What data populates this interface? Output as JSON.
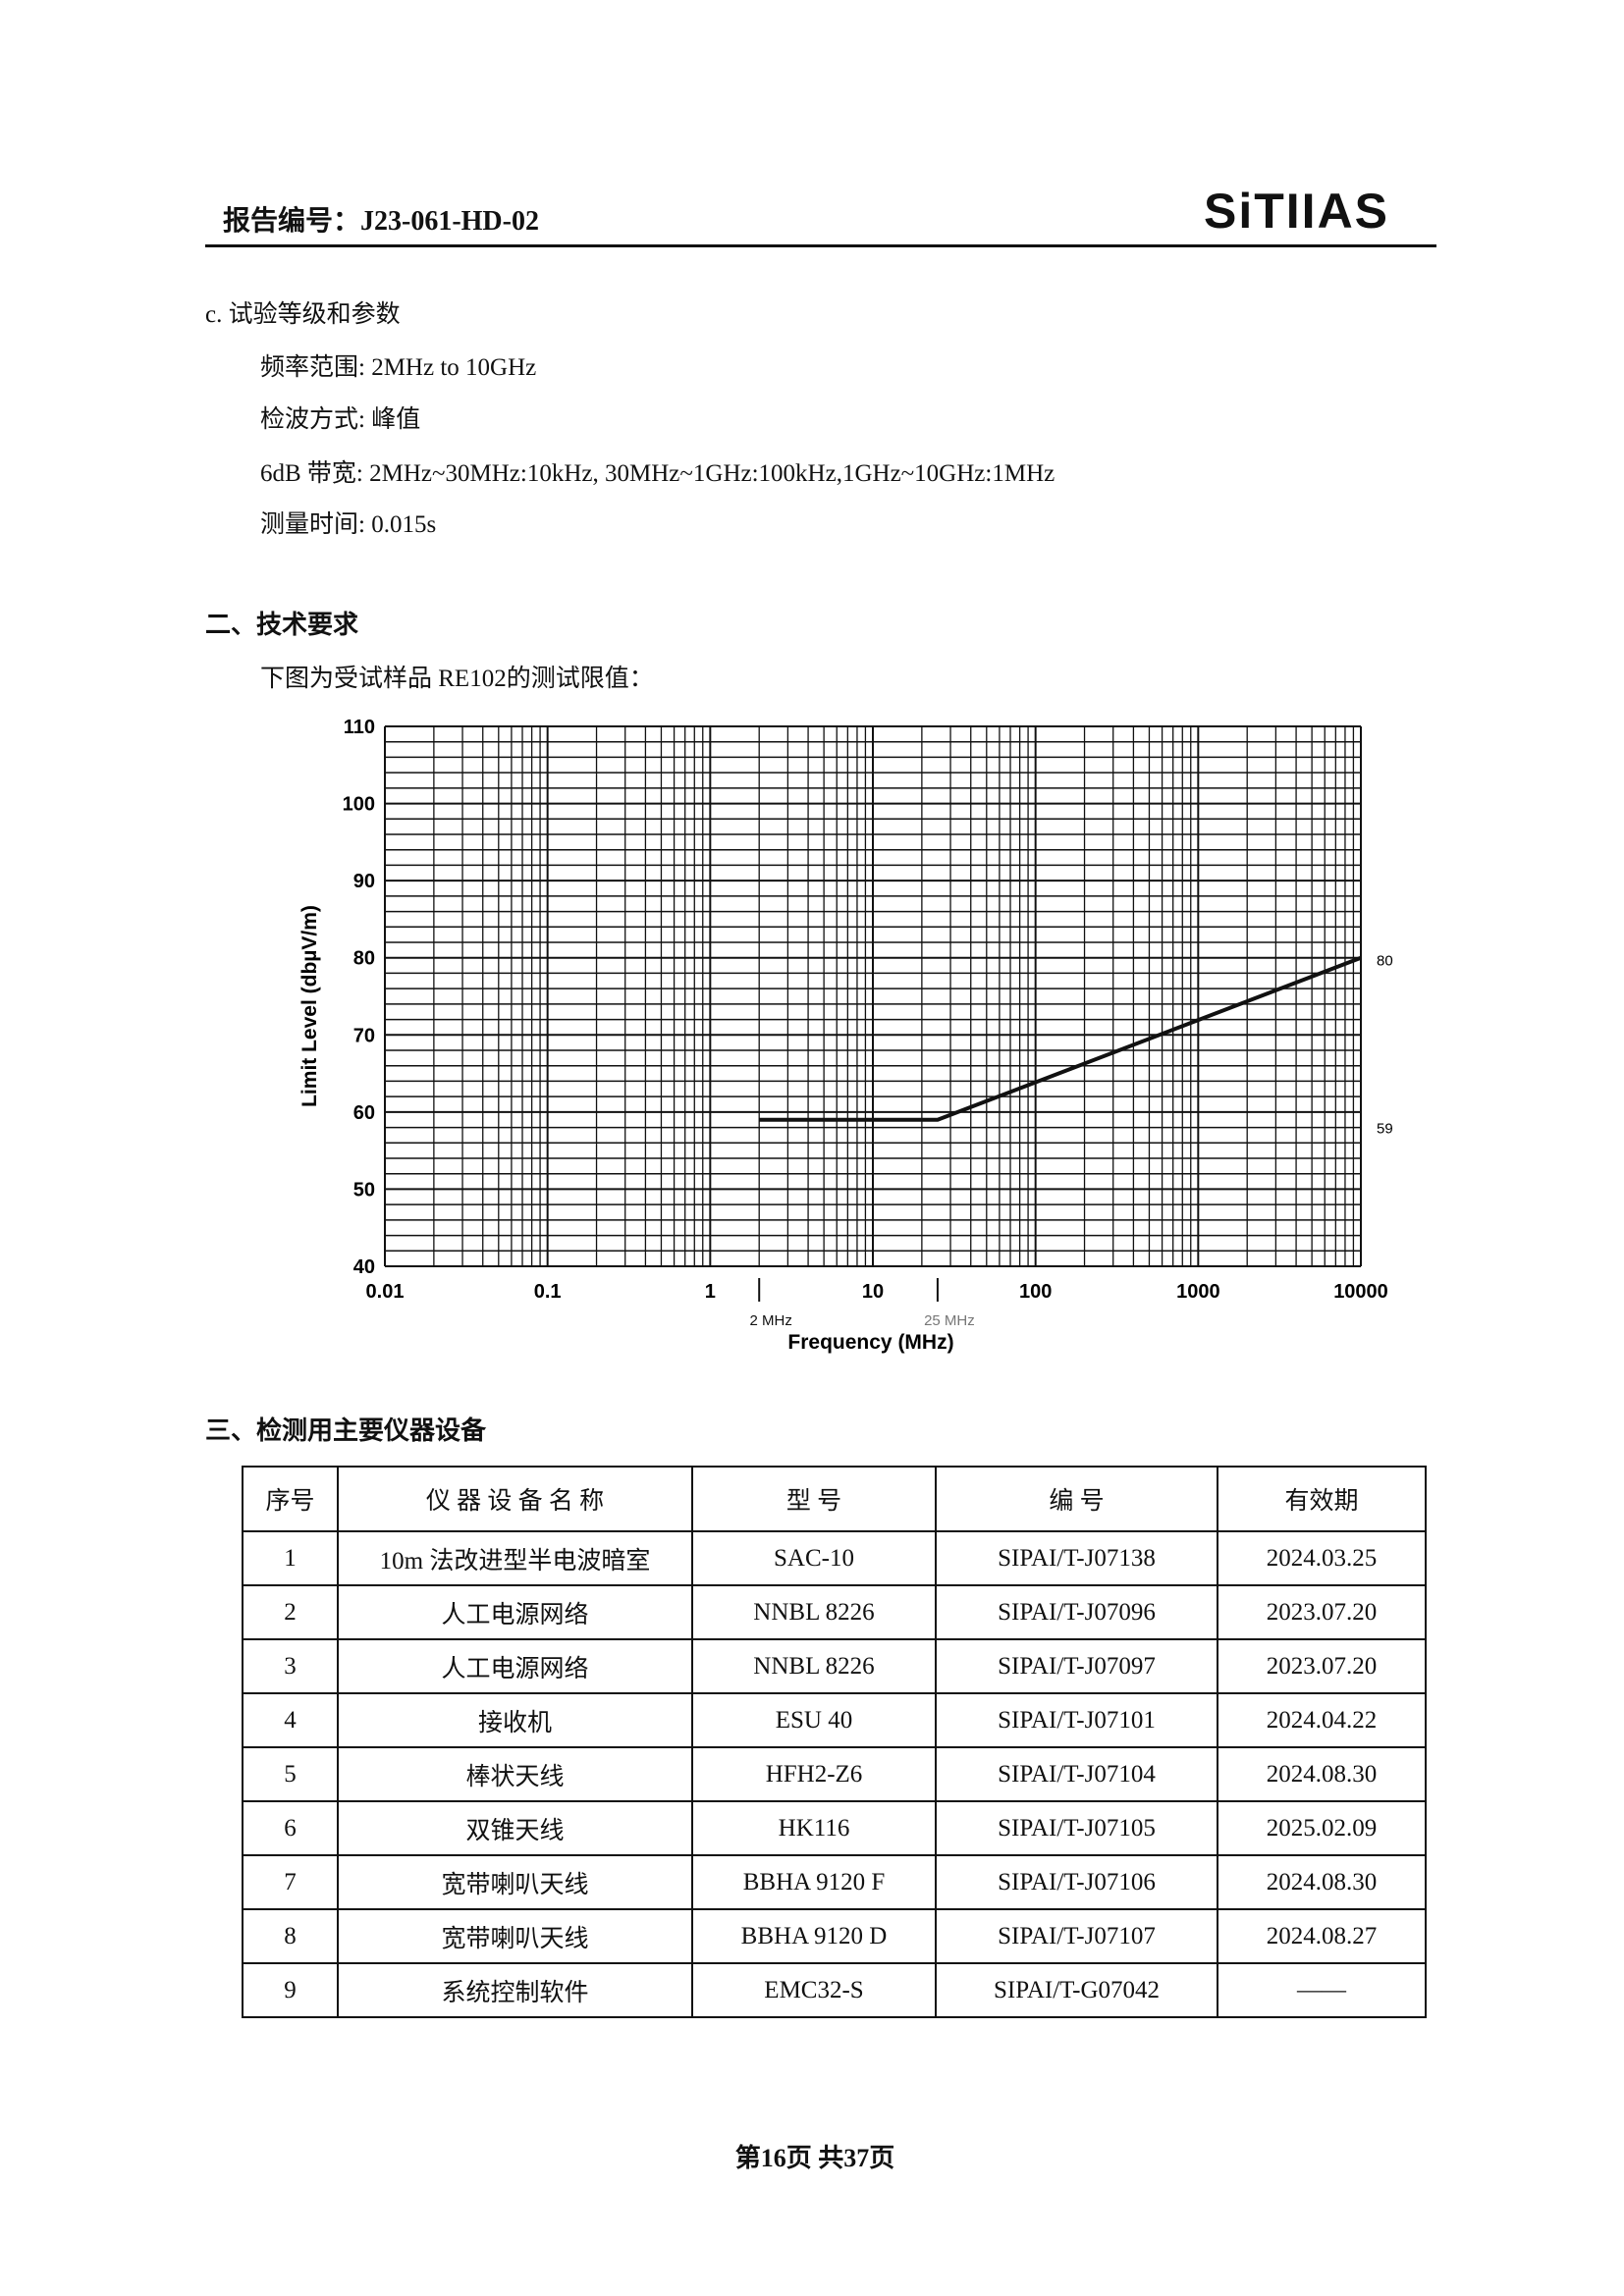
{
  "header": {
    "report_no": "报告编号：J23-061-HD-02",
    "logo_text": "SiTIIAS"
  },
  "section_c": {
    "title": "c. 试验等级和参数",
    "lines": [
      "频率范围: 2MHz to 10GHz",
      "检波方式: 峰值",
      "6dB 带宽: 2MHz~30MHz:10kHz, 30MHz~1GHz:100kHz,1GHz~10GHz:1MHz",
      "测量时间: 0.015s"
    ]
  },
  "section_2": {
    "title": "二、技术要求",
    "intro": "下图为受试样品 RE102的测试限值："
  },
  "chart_data": {
    "type": "line",
    "xlabel": "Frequency (MHz)",
    "ylabel": "Limit Level (dbµV/m)",
    "x_scale": "log",
    "xlim": [
      0.01,
      10000
    ],
    "ylim": [
      40,
      110
    ],
    "grid": true,
    "x_ticks": [
      "0.01",
      "0.1",
      "1",
      "10",
      "100",
      "1000",
      "10000"
    ],
    "y_ticks": [
      "40",
      "50",
      "60",
      "70",
      "80",
      "90",
      "100",
      "110"
    ],
    "annotations": {
      "x_markers": [
        "2 MHz",
        "25 MHz"
      ],
      "right_labels": [
        "80",
        "59"
      ]
    },
    "series": [
      {
        "x": [
          2,
          25,
          10000
        ],
        "y": [
          59,
          59,
          80
        ]
      }
    ],
    "line_color": "#111111"
  },
  "section_3": {
    "title": "三、检测用主要仪器设备"
  },
  "table": {
    "headers": [
      "序号",
      "仪 器 设 备 名 称",
      "型 号",
      "编 号",
      "有效期"
    ],
    "rows": [
      [
        "1",
        "10m 法改进型半电波暗室",
        "SAC-10",
        "SIPAI/T-J07138",
        "2024.03.25"
      ],
      [
        "2",
        "人工电源网络",
        "NNBL 8226",
        "SIPAI/T-J07096",
        "2023.07.20"
      ],
      [
        "3",
        "人工电源网络",
        "NNBL 8226",
        "SIPAI/T-J07097",
        "2023.07.20"
      ],
      [
        "4",
        "接收机",
        "ESU 40",
        "SIPAI/T-J07101",
        "2024.04.22"
      ],
      [
        "5",
        "棒状天线",
        "HFH2-Z6",
        "SIPAI/T-J07104",
        "2024.08.30"
      ],
      [
        "6",
        "双锥天线",
        "HK116",
        "SIPAI/T-J07105",
        "2025.02.09"
      ],
      [
        "7",
        "宽带喇叭天线",
        "BBHA 9120 F",
        "SIPAI/T-J07106",
        "2024.08.30"
      ],
      [
        "8",
        "宽带喇叭天线",
        "BBHA 9120 D",
        "SIPAI/T-J07107",
        "2024.08.27"
      ],
      [
        "9",
        "系统控制软件",
        "EMC32-S",
        "SIPAI/T-G07042",
        "——"
      ]
    ]
  },
  "footer": {
    "page": "第16页 共37页"
  }
}
